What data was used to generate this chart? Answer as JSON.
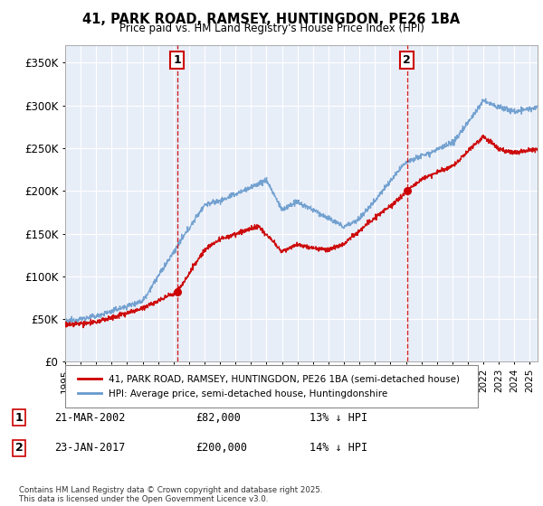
{
  "title": "41, PARK ROAD, RAMSEY, HUNTINGDON, PE26 1BA",
  "subtitle": "Price paid vs. HM Land Registry's House Price Index (HPI)",
  "legend_label_red": "41, PARK ROAD, RAMSEY, HUNTINGDON, PE26 1BA (semi-detached house)",
  "legend_label_blue": "HPI: Average price, semi-detached house, Huntingdonshire",
  "annotation1_label": "1",
  "annotation1_date": "21-MAR-2002",
  "annotation1_price": "£82,000",
  "annotation1_hpi": "13% ↓ HPI",
  "annotation1_year": 2002.22,
  "annotation1_value": 82000,
  "annotation2_label": "2",
  "annotation2_date": "23-JAN-2017",
  "annotation2_price": "£200,000",
  "annotation2_hpi": "14% ↓ HPI",
  "annotation2_year": 2017.07,
  "annotation2_value": 200000,
  "footer": "Contains HM Land Registry data © Crown copyright and database right 2025.\nThis data is licensed under the Open Government Licence v3.0.",
  "ylim": [
    0,
    370000
  ],
  "yticks": [
    0,
    50000,
    100000,
    150000,
    200000,
    250000,
    300000,
    350000
  ],
  "ytick_labels": [
    "£0",
    "£50K",
    "£100K",
    "£150K",
    "£200K",
    "£250K",
    "£300K",
    "£350K"
  ],
  "color_red": "#cc0000",
  "color_blue": "#6699cc",
  "color_vline": "#cc0000",
  "background_plot": "#e8eef8",
  "background_fig": "#ffffff",
  "grid_color": "#ffffff",
  "xlim_start": 1995,
  "xlim_end": 2025.5
}
